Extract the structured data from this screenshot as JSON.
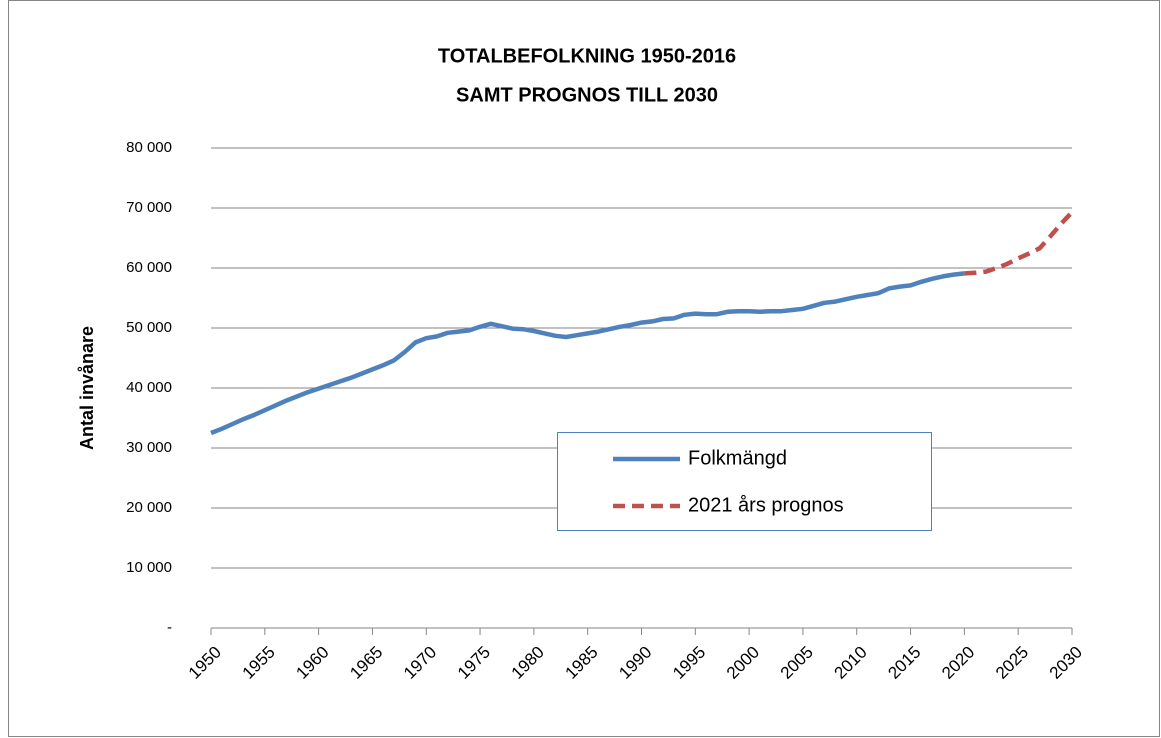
{
  "chart_data": {
    "type": "line",
    "title": [
      "TOTALBEFOLKNING 1950-2016",
      "SAMT PROGNOS TILL 2030"
    ],
    "y_label": "Antal invånare",
    "xlim": [
      1950,
      2030
    ],
    "xticks": [
      1950,
      1955,
      1960,
      1965,
      1970,
      1975,
      1980,
      1985,
      1990,
      1995,
      2000,
      2005,
      2010,
      2015,
      2020,
      2025,
      2030
    ],
    "ylim": [
      0,
      80000
    ],
    "yticks": [
      {
        "value": 0,
        "label": "-"
      },
      {
        "value": 10000,
        "label": "10 000"
      },
      {
        "value": 20000,
        "label": "20 000"
      },
      {
        "value": 30000,
        "label": "30 000"
      },
      {
        "value": 40000,
        "label": "40 000"
      },
      {
        "value": 50000,
        "label": "50 000"
      },
      {
        "value": 60000,
        "label": "60 000"
      },
      {
        "value": 70000,
        "label": "70 000"
      },
      {
        "value": 80000,
        "label": "80 000"
      }
    ],
    "grid": true,
    "series": [
      {
        "name": "Folkmängd",
        "color": "#4f81bd",
        "dash": false,
        "x": [
          1950,
          1951,
          1952,
          1953,
          1954,
          1955,
          1956,
          1957,
          1958,
          1959,
          1960,
          1961,
          1962,
          1963,
          1964,
          1965,
          1966,
          1967,
          1968,
          1969,
          1970,
          1971,
          1972,
          1973,
          1974,
          1975,
          1976,
          1977,
          1978,
          1979,
          1980,
          1981,
          1982,
          1983,
          1984,
          1985,
          1986,
          1987,
          1988,
          1989,
          1990,
          1991,
          1992,
          1993,
          1994,
          1995,
          1996,
          1997,
          1998,
          1999,
          2000,
          2001,
          2002,
          2003,
          2004,
          2005,
          2006,
          2007,
          2008,
          2009,
          2010,
          2011,
          2012,
          2013,
          2014,
          2015,
          2016,
          2017,
          2018,
          2019,
          2020
        ],
        "values": [
          32500,
          33200,
          34000,
          34800,
          35500,
          36300,
          37100,
          37900,
          38600,
          39300,
          39900,
          40500,
          41100,
          41700,
          42400,
          43100,
          43800,
          44600,
          46000,
          47600,
          48300,
          48600,
          49200,
          49400,
          49600,
          50200,
          50700,
          50300,
          49900,
          49800,
          49500,
          49100,
          48700,
          48500,
          48800,
          49100,
          49400,
          49800,
          50200,
          50500,
          50900,
          51100,
          51500,
          51600,
          52200,
          52400,
          52300,
          52300,
          52700,
          52800,
          52800,
          52700,
          52800,
          52800,
          53000,
          53200,
          53700,
          54200,
          54400,
          54800,
          55200,
          55500,
          55800,
          56600,
          56900,
          57100,
          57700,
          58200,
          58600,
          58900,
          59100
        ]
      },
      {
        "name": "2021 års prognos",
        "color": "#c0504d",
        "dash": true,
        "x": [
          2020,
          2021,
          2022,
          2023,
          2024,
          2025,
          2026,
          2027,
          2028,
          2029,
          2030
        ],
        "values": [
          59100,
          59200,
          59400,
          60000,
          60700,
          61600,
          62400,
          63300,
          65300,
          67400,
          69300
        ]
      }
    ]
  }
}
